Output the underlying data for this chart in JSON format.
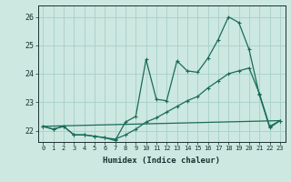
{
  "xlabel": "Humidex (Indice chaleur)",
  "background_color": "#cce8e0",
  "grid_color": "#a8cfc7",
  "line_color": "#1a6b5a",
  "xlim": [
    -0.5,
    23.5
  ],
  "ylim": [
    21.6,
    26.4
  ],
  "yticks": [
    22,
    23,
    24,
    25,
    26
  ],
  "xticks": [
    0,
    1,
    2,
    3,
    4,
    5,
    6,
    7,
    8,
    9,
    10,
    11,
    12,
    13,
    14,
    15,
    16,
    17,
    18,
    19,
    20,
    21,
    22,
    23
  ],
  "line1_x": [
    0,
    1,
    2,
    3,
    4,
    5,
    6,
    7,
    8,
    9,
    10,
    11,
    12,
    13,
    14,
    15,
    16,
    17,
    18,
    19,
    20,
    21,
    22,
    23
  ],
  "line1_y": [
    22.15,
    22.05,
    22.15,
    21.85,
    21.85,
    21.8,
    21.75,
    21.65,
    22.3,
    22.5,
    24.5,
    23.1,
    23.05,
    24.45,
    24.1,
    24.05,
    24.55,
    25.2,
    26.0,
    25.8,
    24.85,
    23.25,
    22.1,
    22.35
  ],
  "line2_x": [
    0,
    1,
    2,
    3,
    4,
    5,
    6,
    7,
    8,
    9,
    10,
    11,
    12,
    13,
    14,
    15,
    16,
    17,
    18,
    19,
    20,
    21,
    22,
    23
  ],
  "line2_y": [
    22.15,
    22.05,
    22.15,
    21.85,
    21.85,
    21.8,
    21.75,
    21.7,
    21.85,
    22.05,
    22.3,
    22.45,
    22.65,
    22.85,
    23.05,
    23.2,
    23.5,
    23.75,
    24.0,
    24.1,
    24.2,
    23.3,
    22.15,
    22.35
  ],
  "line3_x": [
    0,
    23
  ],
  "line3_y": [
    22.15,
    22.35
  ]
}
